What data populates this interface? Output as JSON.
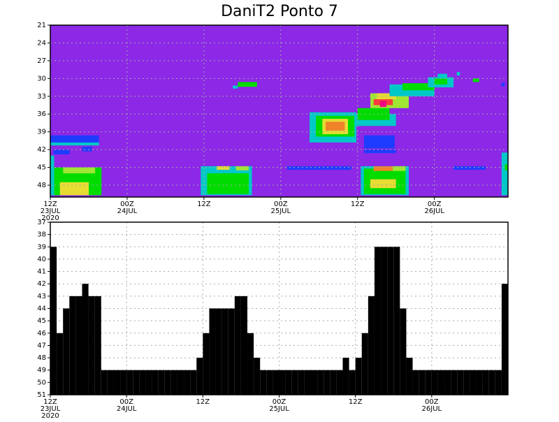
{
  "title": "DaniT2 Ponto 7",
  "chart_data": [
    {
      "type": "shaded",
      "background": "#8c28e6",
      "grid": true,
      "xlim": [
        0,
        71.5
      ],
      "ylim": [
        50,
        21
      ],
      "yticks": [
        21,
        24,
        27,
        30,
        33,
        36,
        39,
        42,
        45,
        48
      ],
      "xticks": [
        {
          "value": 0,
          "label": "12Z",
          "date": "23JUL",
          "year": "2020"
        },
        {
          "value": 12,
          "label": "00Z",
          "date": "24JUL"
        },
        {
          "value": 24,
          "label": "12Z"
        },
        {
          "value": 36,
          "label": "00Z",
          "date": "25JUL"
        },
        {
          "value": 48,
          "label": "12Z"
        },
        {
          "value": 60,
          "label": "00Z",
          "date": "26JUL"
        }
      ],
      "cells": [
        {
          "x": [
            0,
            7.6
          ],
          "y": [
            39.6,
            40.8
          ],
          "color": "#1e3cff"
        },
        {
          "x": [
            0,
            7.6
          ],
          "y": [
            40.8,
            41.3
          ],
          "color": "#00c8c8"
        },
        {
          "x": [
            0.5,
            3
          ],
          "y": [
            42,
            42.8
          ],
          "color": "#1e3cff"
        },
        {
          "x": [
            5,
            6.5
          ],
          "y": [
            41.5,
            42.3
          ],
          "color": "#1e3cff"
        },
        {
          "x": [
            0,
            0.6
          ],
          "y": [
            43,
            49.7
          ],
          "color": "#00c8c8"
        },
        {
          "x": [
            0.6,
            8
          ],
          "y": [
            45,
            49.7
          ],
          "color": "#00dc00"
        },
        {
          "x": [
            2,
            7
          ],
          "y": [
            45,
            46
          ],
          "color": "#a0e632"
        },
        {
          "x": [
            1.5,
            6
          ],
          "y": [
            47.5,
            49.7
          ],
          "color": "#e6dc32"
        },
        {
          "x": [
            23.5,
            31.5
          ],
          "y": [
            44.8,
            49.7
          ],
          "color": "#00c8c8"
        },
        {
          "x": [
            24.5,
            31
          ],
          "y": [
            46,
            49.5
          ],
          "color": "#00dc00"
        },
        {
          "x": [
            26,
            28
          ],
          "y": [
            44.8,
            45.4
          ],
          "color": "#e6dc32"
        },
        {
          "x": [
            29,
            31
          ],
          "y": [
            44.8,
            45.5
          ],
          "color": "#a0e632"
        },
        {
          "x": [
            29.3,
            32.3
          ],
          "y": [
            30.6,
            31.4
          ],
          "color": "#00dc00"
        },
        {
          "x": [
            28.5,
            29.3
          ],
          "y": [
            31.2,
            31.7
          ],
          "color": "#00c8c8"
        },
        {
          "x": [
            37,
            47
          ],
          "y": [
            44.8,
            45.4
          ],
          "color": "#1e3cff"
        },
        {
          "x": [
            40.5,
            47.8
          ],
          "y": [
            35.7,
            40.8
          ],
          "color": "#00c8c8"
        },
        {
          "x": [
            41.5,
            47.5
          ],
          "y": [
            36.3,
            39.8
          ],
          "color": "#00dc00"
        },
        {
          "x": [
            42.5,
            46.5
          ],
          "y": [
            36.8,
            39.4
          ],
          "color": "#e6dc32"
        },
        {
          "x": [
            43,
            46
          ],
          "y": [
            37.3,
            38.8
          ],
          "color": "#f0822a"
        },
        {
          "x": [
            49,
            53.8
          ],
          "y": [
            39.6,
            41.8
          ],
          "color": "#1e3cff"
        },
        {
          "x": [
            49,
            54
          ],
          "y": [
            42,
            42.6
          ],
          "color": "#1e3cff"
        },
        {
          "x": [
            47.5,
            54
          ],
          "y": [
            36,
            38
          ],
          "color": "#00c8c8"
        },
        {
          "x": [
            48,
            53
          ],
          "y": [
            35,
            37
          ],
          "color": "#00dc00"
        },
        {
          "x": [
            50,
            56
          ],
          "y": [
            32.5,
            35
          ],
          "color": "#a0e632"
        },
        {
          "x": [
            50.5,
            53.5
          ],
          "y": [
            33.5,
            34.5
          ],
          "color": "#fa3c3c"
        },
        {
          "x": [
            51.5,
            52.5
          ],
          "y": [
            33.8,
            34.8
          ],
          "color": "#f00082"
        },
        {
          "x": [
            51,
            54
          ],
          "y": [
            32.5,
            33.5
          ],
          "color": "#e6dc32"
        },
        {
          "x": [
            53,
            60
          ],
          "y": [
            31,
            33
          ],
          "color": "#00c8c8"
        },
        {
          "x": [
            55,
            60
          ],
          "y": [
            30.8,
            32
          ],
          "color": "#00dc00"
        },
        {
          "x": [
            59,
            63
          ],
          "y": [
            29.8,
            31.5
          ],
          "color": "#00c8c8"
        },
        {
          "x": [
            60,
            62
          ],
          "y": [
            30,
            31
          ],
          "color": "#00dc00"
        },
        {
          "x": [
            60.5,
            62
          ],
          "y": [
            29.2,
            30
          ],
          "color": "#00c8c8"
        },
        {
          "x": [
            63.5,
            64
          ],
          "y": [
            28.9,
            29.5
          ],
          "color": "#00c8c8"
        },
        {
          "x": [
            66,
            67
          ],
          "y": [
            30,
            30.6
          ],
          "color": "#00dc00"
        },
        {
          "x": [
            70.5,
            71
          ],
          "y": [
            30.7,
            31.3
          ],
          "color": "#1e3cff"
        },
        {
          "x": [
            48.5,
            56
          ],
          "y": [
            44.8,
            49.7
          ],
          "color": "#00c8c8"
        },
        {
          "x": [
            49,
            55.5
          ],
          "y": [
            45.2,
            49.5
          ],
          "color": "#00dc00"
        },
        {
          "x": [
            50,
            54
          ],
          "y": [
            47,
            48.5
          ],
          "color": "#e6dc32"
        },
        {
          "x": [
            50.5,
            53.5
          ],
          "y": [
            44.8,
            45.6
          ],
          "color": "#f0822a"
        },
        {
          "x": [
            53.5,
            55.5
          ],
          "y": [
            44.8,
            45.6
          ],
          "color": "#a0e632"
        },
        {
          "x": [
            63,
            68
          ],
          "y": [
            44.8,
            45.4
          ],
          "color": "#1e3cff"
        },
        {
          "x": [
            70.5,
            71.5
          ],
          "y": [
            42.5,
            49.7
          ],
          "color": "#00c8c8"
        },
        {
          "x": [
            71,
            71.5
          ],
          "y": [
            44.5,
            45.5
          ],
          "color": "#00dc00"
        }
      ]
    },
    {
      "type": "bar",
      "color": "#000000",
      "grid": true,
      "xlim": [
        0,
        72
      ],
      "ylim": [
        51,
        37
      ],
      "yticks": [
        37,
        38,
        39,
        40,
        41,
        42,
        43,
        44,
        45,
        46,
        47,
        48,
        49,
        50,
        51
      ],
      "xticks": [
        {
          "value": 0,
          "label": "12Z",
          "date": "23JUL",
          "year": "2020"
        },
        {
          "value": 12,
          "label": "00Z",
          "date": "24JUL"
        },
        {
          "value": 24,
          "label": "12Z"
        },
        {
          "value": 36,
          "label": "00Z",
          "date": "25JUL"
        },
        {
          "value": 48,
          "label": "12Z"
        },
        {
          "value": 60,
          "label": "00Z",
          "date": "26JUL"
        }
      ],
      "x": [
        0,
        1,
        2,
        3,
        4,
        5,
        6,
        7,
        8,
        9,
        10,
        11,
        12,
        13,
        14,
        15,
        16,
        17,
        18,
        19,
        20,
        21,
        22,
        23,
        24,
        25,
        26,
        27,
        28,
        29,
        30,
        31,
        32,
        33,
        34,
        35,
        36,
        37,
        38,
        39,
        40,
        41,
        42,
        43,
        44,
        45,
        46,
        47,
        48,
        49,
        50,
        51,
        52,
        53,
        54,
        55,
        56,
        57,
        58,
        59,
        60,
        61,
        62,
        63,
        64,
        65,
        66,
        67,
        68,
        69,
        70,
        71
      ],
      "values": [
        39,
        46,
        44,
        43,
        43,
        42,
        43,
        43,
        49,
        49,
        49,
        49,
        49,
        49,
        49,
        49,
        49,
        49,
        49,
        49,
        49,
        49,
        49,
        48,
        46,
        44,
        44,
        44,
        44,
        43,
        43,
        46,
        48,
        49,
        49,
        49,
        49,
        49,
        49,
        49,
        49,
        49,
        49,
        49,
        49,
        49,
        48,
        49,
        48,
        46,
        43,
        39,
        39,
        39,
        39,
        44,
        48,
        49,
        49,
        49,
        49,
        49,
        49,
        49,
        49,
        49,
        49,
        49,
        49,
        49,
        49,
        42
      ]
    }
  ]
}
